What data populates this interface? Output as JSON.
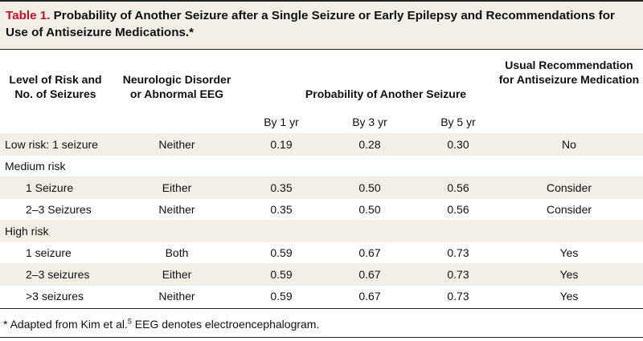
{
  "table": {
    "title_label": "Table 1.",
    "title_text": " Probability of Another Seizure after a Single Seizure or Early Epilepsy and Recommendations for Use of Antiseizure Medications.",
    "title_mark": "*",
    "headers": {
      "risk": "Level of Risk and No. of Seizures",
      "disorder": "Neurologic Disorder or Abnormal EEG",
      "probability": "Probability of Another Seizure",
      "recommendation": "Usual Recommendation for Antiseizure Medication"
    },
    "subheaders": [
      "By 1 yr",
      "By 3 yr",
      "By 5 yr"
    ],
    "rows": [
      {
        "label": "Low risk: 1 seizure",
        "disorder": "Neither",
        "p1": "0.19",
        "p3": "0.28",
        "p5": "0.30",
        "rec": "No"
      },
      {
        "label": "Medium risk",
        "disorder": "",
        "p1": "",
        "p3": "",
        "p5": "",
        "rec": ""
      },
      {
        "label": "1 Seizure",
        "disorder": "Either",
        "p1": "0.35",
        "p3": "0.50",
        "p5": "0.56",
        "rec": "Consider"
      },
      {
        "label": "2–3 Seizures",
        "disorder": "Neither",
        "p1": "0.35",
        "p3": "0.50",
        "p5": "0.56",
        "rec": "Consider"
      },
      {
        "label": "High risk",
        "disorder": "",
        "p1": "",
        "p3": "",
        "p5": "",
        "rec": ""
      },
      {
        "label": "1 seizure",
        "disorder": "Both",
        "p1": "0.59",
        "p3": "0.67",
        "p5": "0.73",
        "rec": "Yes"
      },
      {
        "label": "2–3 seizures",
        "disorder": "Either",
        "p1": "0.59",
        "p3": "0.67",
        "p5": "0.73",
        "rec": "Yes"
      },
      {
        "label": ">3 seizures",
        "disorder": "Neither",
        "p1": "0.59",
        "p3": "0.67",
        "p5": "0.73",
        "rec": "Yes"
      }
    ],
    "footnote_mark": "*",
    "footnote_text": " Adapted from Kim et al.",
    "footnote_ref": "5",
    "footnote_text2": " EEG denotes electroencephalogram."
  },
  "colors": {
    "band": "#f3efe6",
    "title_label": "#c8102e"
  }
}
